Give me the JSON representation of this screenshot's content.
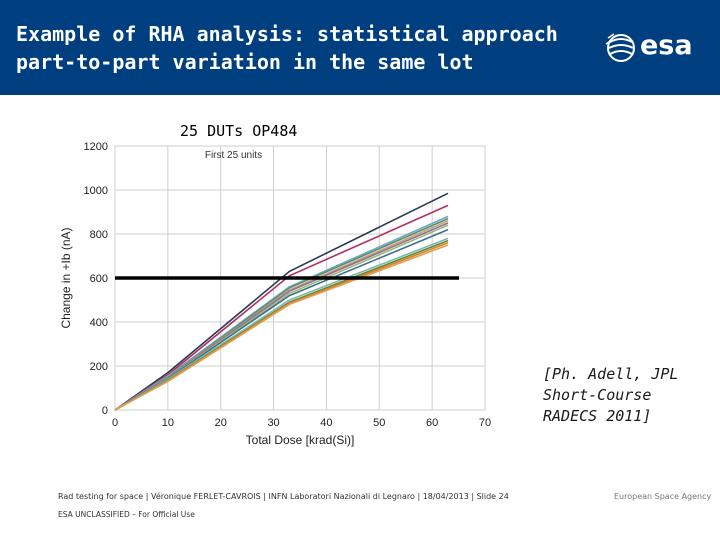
{
  "slide": {
    "title_line1": "Example of RHA analysis: statistical approach",
    "title_line2": "part-to-part variation in the same lot",
    "logo_text": "esa",
    "citation_lines": [
      "[Ph. Adell, JPL",
      "Short-Course",
      "RADECS 2011]"
    ],
    "footer_text": "Rad testing for space | Véronique FERLET-CAVROIS | INFN Laboratori Nazionali di Legnaro | 18/04/2013 | Slide  24",
    "classification": "ESA UNCLASSIFIED – For Official Use",
    "agency_name": "European Space Agency"
  },
  "chart_data": {
    "type": "line",
    "overlay_label": "25 DUTs OP484",
    "inner_title": "First 25 units",
    "xlabel": "Total Dose [krad(Si)]",
    "ylabel": "Change in +Ib (nA)",
    "xlim": [
      0,
      70
    ],
    "ylim": [
      0,
      1200
    ],
    "xticks": [
      0,
      10,
      20,
      30,
      40,
      50,
      60,
      70
    ],
    "yticks": [
      0,
      200,
      400,
      600,
      800,
      1000,
      1200
    ],
    "threshold": {
      "y": 600,
      "color": "#000000"
    },
    "x": [
      0,
      10,
      33,
      63
    ],
    "series": [
      {
        "values": [
          0,
          170,
          630,
          985
        ],
        "color": "#2b3a55"
      },
      {
        "values": [
          0,
          160,
          610,
          930
        ],
        "color": "#b03060"
      },
      {
        "values": [
          0,
          155,
          560,
          880
        ],
        "color": "#6fa8c8"
      },
      {
        "values": [
          0,
          150,
          555,
          870
        ],
        "color": "#5a8f6a"
      },
      {
        "values": [
          0,
          150,
          545,
          860
        ],
        "color": "#c8a070"
      },
      {
        "values": [
          0,
          148,
          540,
          850
        ],
        "color": "#8d6e9e"
      },
      {
        "values": [
          0,
          145,
          530,
          840
        ],
        "color": "#9ab870"
      },
      {
        "values": [
          0,
          143,
          520,
          820
        ],
        "color": "#3d6f8f"
      },
      {
        "values": [
          0,
          140,
          500,
          780
        ],
        "color": "#7fb8b0"
      },
      {
        "values": [
          0,
          135,
          490,
          770
        ],
        "color": "#5b8a3a"
      },
      {
        "values": [
          0,
          133,
          485,
          760
        ],
        "color": "#d9822b"
      },
      {
        "values": [
          0,
          130,
          480,
          750
        ],
        "color": "#e0a050"
      }
    ]
  }
}
